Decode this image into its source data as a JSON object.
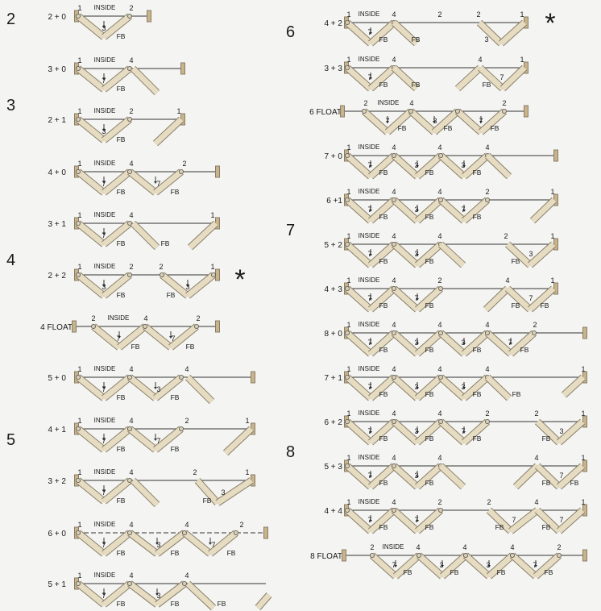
{
  "left_column": {
    "groups": [
      {
        "label": "2",
        "rows": [
          {
            "config": "2 + 0",
            "marks": [
              "1",
              "INSIDE",
              "2",
              "3",
              "FB"
            ]
          },
          {
            "config": "3 + 0",
            "marks": [
              "1",
              "INSIDE",
              "4",
              "7",
              "FB"
            ]
          }
        ]
      },
      {
        "label": "3",
        "rows": [
          {
            "config": "2 + 1",
            "marks": [
              "1",
              "INSIDE",
              "2",
              "1",
              "3",
              "FB"
            ]
          },
          {
            "config": "4 + 0",
            "marks": [
              "1",
              "INSIDE",
              "4",
              "2",
              "7",
              "FB",
              "7",
              "FB"
            ]
          },
          {
            "config": "3 + 1",
            "marks": [
              "1",
              "INSIDE",
              "4",
              "1",
              "7",
              "FB",
              "FB"
            ]
          }
        ]
      },
      {
        "label": "4",
        "star": "*",
        "rows": [
          {
            "config": "2 + 2",
            "marks": [
              "1",
              "INSIDE",
              "2",
              "2",
              "1",
              "3",
              "FB",
              "FB",
              "3"
            ]
          },
          {
            "config": "4 FLOAT",
            "marks": [
              "2",
              "INSIDE",
              "4",
              "2",
              "7",
              "FB",
              "7",
              "FB"
            ]
          },
          {
            "config": "5 + 0",
            "marks": [
              "1",
              "INSIDE",
              "4",
              "4",
              "7",
              "FB",
              "3",
              "FB"
            ]
          }
        ]
      },
      {
        "label": "5",
        "rows": [
          {
            "config": "4 + 1",
            "marks": [
              "1",
              "INSIDE",
              "4",
              "2",
              "1",
              "7",
              "FB",
              "7",
              "FB"
            ]
          },
          {
            "config": "3 + 2",
            "marks": [
              "1",
              "INSIDE",
              "4",
              "2",
              "1",
              "7",
              "FB",
              "FB",
              "3"
            ]
          },
          {
            "config": "6 + 0",
            "marks": [
              "1",
              "INSIDE",
              "4",
              "4",
              "2",
              "7",
              "FB",
              "3",
              "FB",
              "7",
              "FB"
            ]
          },
          {
            "config": "5 + 1",
            "marks": [
              "1",
              "INSIDE",
              "4",
              "4",
              "7",
              "FB",
              "3",
              "FB",
              "FB"
            ]
          }
        ]
      }
    ]
  },
  "right_column": {
    "groups": [
      {
        "label": "6",
        "star": "*",
        "rows": [
          {
            "config": "4 + 2",
            "marks": [
              "1",
              "INSIDE",
              "4",
              "2",
              "2",
              "1",
              "7",
              "FB",
              "FB",
              "3"
            ]
          },
          {
            "config": "3 + 3",
            "marks": [
              "1",
              "INSIDE",
              "4",
              "4",
              "1",
              "7",
              "FB",
              "FB",
              "7",
              "FB"
            ]
          },
          {
            "config": "6 FLOAT",
            "marks": [
              "2",
              "INSIDE",
              "4",
              "2",
              "7",
              "FB",
              "3",
              "FB",
              "7",
              "FB"
            ]
          }
        ]
      },
      {
        "label": "7",
        "rows": [
          {
            "config": "7 + 0",
            "marks": [
              "1",
              "INSIDE",
              "4",
              "4",
              "4",
              "7",
              "FB",
              "3",
              "FB",
              "3",
              "FB"
            ]
          },
          {
            "config": "6 +1",
            "marks": [
              "1",
              "INSIDE",
              "4",
              "4",
              "2",
              "1",
              "7",
              "FB",
              "3",
              "FB",
              "7",
              "FB"
            ]
          },
          {
            "config": "5 + 2",
            "marks": [
              "1",
              "INSIDE",
              "4",
              "4",
              "2",
              "1",
              "7",
              "FB",
              "3",
              "FB",
              "FB",
              "3"
            ]
          },
          {
            "config": "4 + 3",
            "marks": [
              "1",
              "INSIDE",
              "4",
              "2",
              "4",
              "1",
              "7",
              "FB",
              "7",
              "FB",
              "FB",
              "7",
              "FB"
            ]
          }
        ]
      },
      {
        "label": "8",
        "rows": [
          {
            "config": "8 + 0",
            "marks": [
              "1",
              "INSIDE",
              "4",
              "4",
              "4",
              "2",
              "7",
              "FB",
              "3",
              "FB",
              "3",
              "FB",
              "7",
              "FB"
            ]
          },
          {
            "config": "7 + 1",
            "marks": [
              "1",
              "INSIDE",
              "4",
              "4",
              "4",
              "1",
              "7",
              "FB",
              "3",
              "FB",
              "3",
              "FB",
              "FB"
            ]
          },
          {
            "config": "6 + 2",
            "marks": [
              "1",
              "INSIDE",
              "4",
              "4",
              "2",
              "2",
              "1",
              "7",
              "FB",
              "3",
              "FB",
              "7",
              "FB",
              "FB",
              "3"
            ]
          },
          {
            "config": "5 + 3",
            "marks": [
              "1",
              "INSIDE",
              "4",
              "4",
              "4",
              "1",
              "7",
              "FB",
              "3",
              "FB",
              "FB",
              "7",
              "FB"
            ]
          },
          {
            "config": "4 + 4",
            "marks": [
              "1",
              "INSIDE",
              "4",
              "2",
              "2",
              "4",
              "1",
              "7",
              "FB",
              "7",
              "FB",
              "FB",
              "7",
              "FB",
              "7",
              "FB"
            ]
          },
          {
            "config": "8 FLOAT",
            "marks": [
              "2",
              "INSIDE",
              "4",
              "4",
              "4",
              "2",
              "7",
              "FB",
              "3",
              "FB",
              "3",
              "FB",
              "7",
              "FB"
            ]
          }
        ]
      }
    ]
  },
  "colors": {
    "panel": "#e6dcc2",
    "panel_edge": "#8a7e6a",
    "post": "#c8b48a",
    "line": "#333333",
    "text": "#1a1a1a"
  }
}
